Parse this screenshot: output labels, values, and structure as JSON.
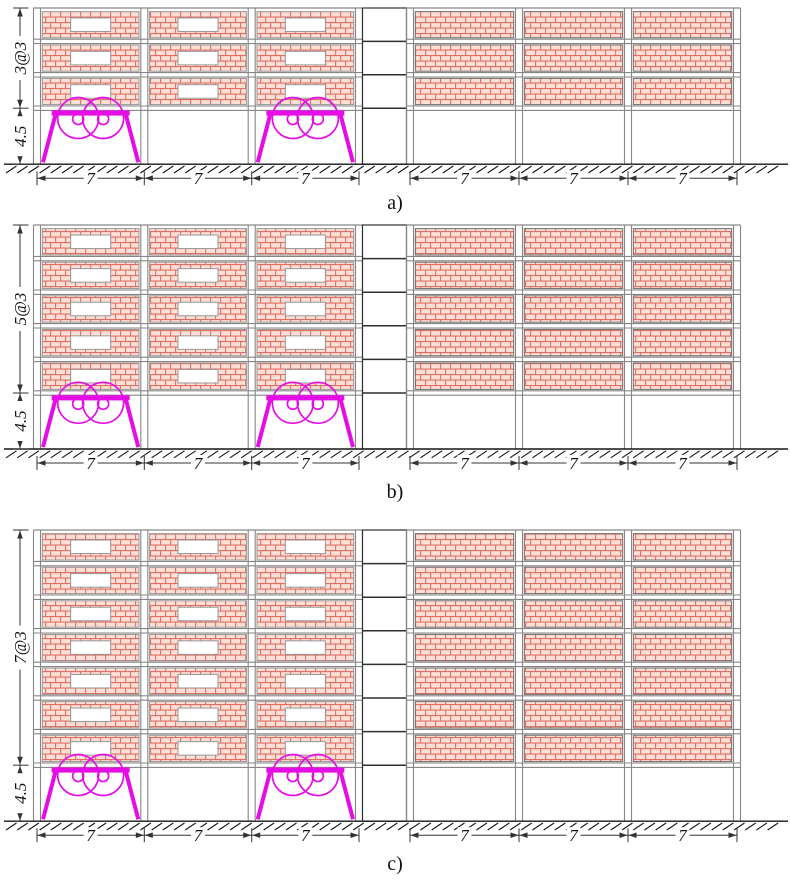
{
  "figures": [
    {
      "id": "a",
      "label": "a)",
      "stories": 3,
      "stories_dimension": "3@3",
      "ground_storey_dimension": "4.5",
      "bay_dimension": "7"
    },
    {
      "id": "b",
      "label": "b)",
      "stories": 5,
      "stories_dimension": "5@3",
      "ground_storey_dimension": "4.5",
      "bay_dimension": "7"
    },
    {
      "id": "c",
      "label": "c)",
      "stories": 7,
      "stories_dimension": "7@3",
      "ground_storey_dimension": "4.5",
      "bay_dimension": "7"
    }
  ],
  "left_building": {
    "bays": 3,
    "bay_dimension_labels": [
      "7",
      "7",
      "7"
    ],
    "has_window_openings": true,
    "braced_ground_bays": [
      1,
      3
    ]
  },
  "right_building": {
    "bays": 3,
    "bay_dimension_labels": [
      "7",
      "7",
      "7"
    ],
    "has_window_openings": false,
    "braced_ground_bays": []
  },
  "colors": {
    "background": "#ffffff",
    "brick_fill": "#fbdfd6",
    "brick_line": "#dd7065",
    "panel_border_left": "#979797",
    "panel_border_right": "#6f6f6f",
    "frame_line": "#868686",
    "link_line": "#2f2f2f",
    "ground_line": "#161616",
    "dimension_line": "#333333",
    "text": "#111111",
    "brace": "#e60ce6"
  }
}
